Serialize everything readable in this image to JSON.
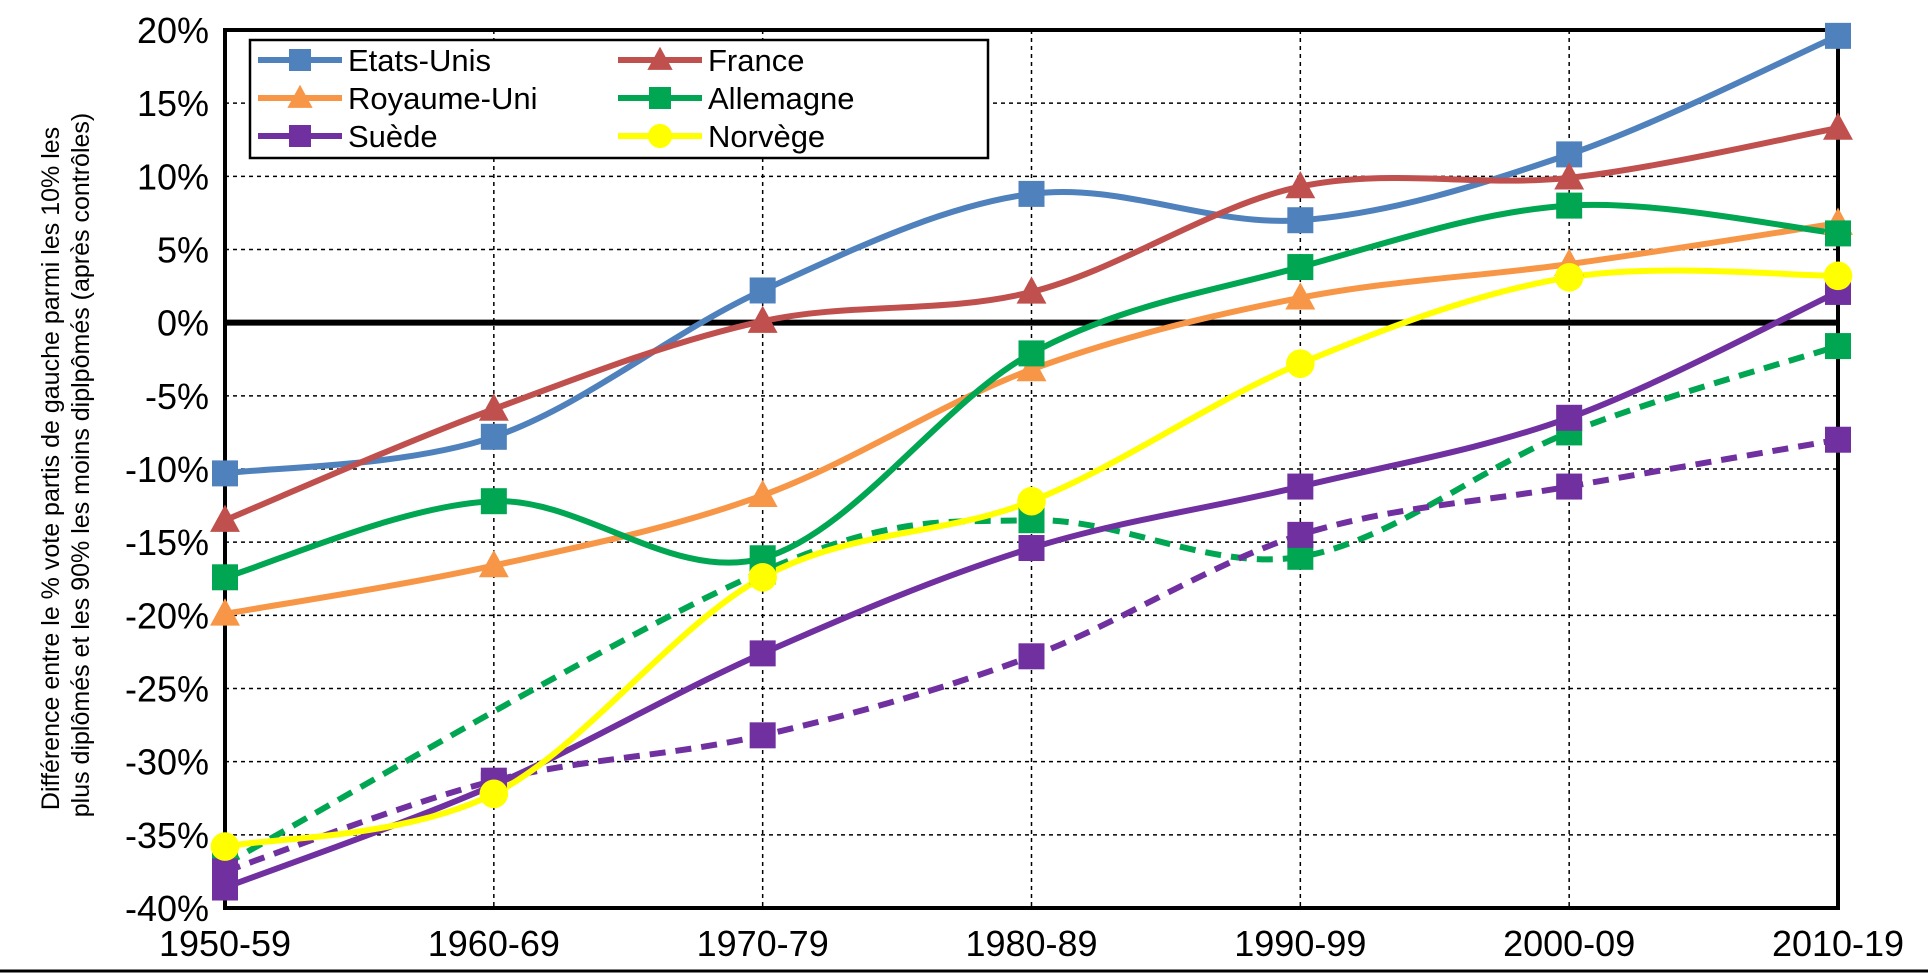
{
  "chart_data": {
    "type": "line",
    "categories": [
      "1950-59",
      "1960-69",
      "1970-79",
      "1980-89",
      "1990-99",
      "2000-09",
      "2010-19"
    ],
    "ylabel_lines": [
      "Différence entre le % vote partis de gauche parmi les 10% les",
      "plus diplômés et les 90% les moins diplpômés (après contrôles)"
    ],
    "ylim": [
      -40,
      20
    ],
    "yticks": [
      "-40%",
      "-35%",
      "-30%",
      "-25%",
      "-20%",
      "-15%",
      "-10%",
      "-5%",
      "0%",
      "5%",
      "10%",
      "15%",
      "20%"
    ],
    "grid": true,
    "legend_position": "top-left",
    "series": [
      {
        "name": "Etats-Unis",
        "color": "#4F81BD",
        "marker": "square",
        "dashed": false,
        "values": [
          -10.3,
          -7.8,
          2.2,
          8.8,
          7.0,
          11.5,
          19.6
        ]
      },
      {
        "name": "France",
        "color": "#C0504D",
        "marker": "triangle",
        "dashed": false,
        "values": [
          -13.5,
          -5.9,
          0.1,
          2.1,
          9.3,
          9.9,
          13.3
        ]
      },
      {
        "name": "Royaume-Uni",
        "color": "#F79646",
        "marker": "triangle",
        "dashed": false,
        "values": [
          -19.9,
          -16.6,
          -11.8,
          -3.2,
          1.7,
          4.0,
          6.8
        ]
      },
      {
        "name": "Allemagne",
        "color": "#00A651",
        "marker": "square",
        "dashed": false,
        "values": [
          -17.4,
          -12.2,
          -16.1,
          -2.1,
          3.8,
          8.0,
          6.1
        ]
      },
      {
        "name": "Suède",
        "color": "#7030A0",
        "marker": "square",
        "dashed": false,
        "values": [
          -38.6,
          -31.6,
          -22.6,
          -15.4,
          -11.2,
          -6.5,
          2.1
        ]
      },
      {
        "name": "Norvège",
        "color": "#FFFF00",
        "marker": "circle",
        "dashed": false,
        "values": [
          -35.8,
          -32.2,
          -17.4,
          -12.2,
          -2.8,
          3.1,
          3.2
        ]
      },
      {
        "color": "#00A651",
        "marker": "square",
        "dashed": true,
        "values": [
          -37.0,
          null,
          -17.0,
          -13.5,
          -16.0,
          -7.5,
          -1.6
        ]
      },
      {
        "color": "#7030A0",
        "marker": "square",
        "dashed": true,
        "values": [
          -37.5,
          -31.3,
          -28.2,
          -22.8,
          -14.5,
          -11.2,
          -8.0
        ]
      }
    ]
  }
}
